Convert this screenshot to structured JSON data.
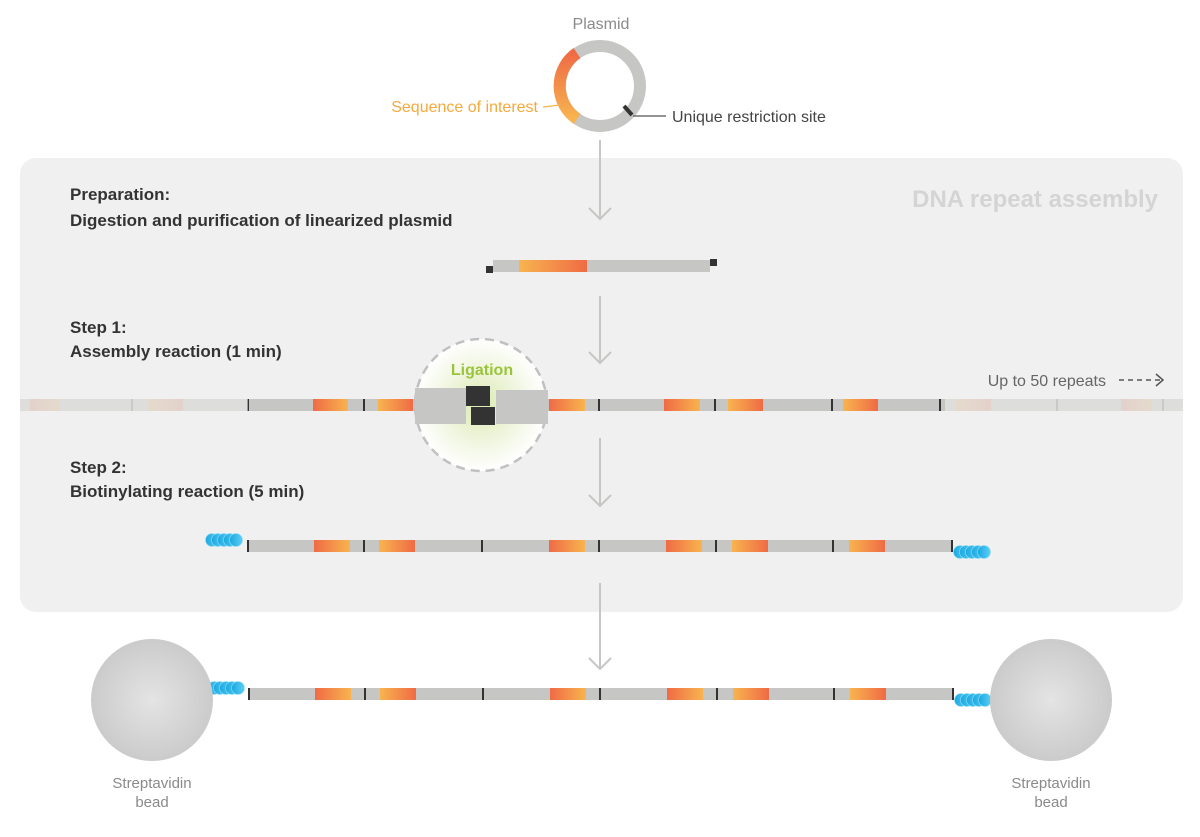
{
  "plasmid": {
    "title": "Plasmid",
    "sequence_label": "Sequence of interest",
    "restriction_label": "Unique restriction site"
  },
  "panel": {
    "title": "DNA repeat assembly",
    "preparation": {
      "heading": "Preparation:",
      "description": "Digestion and purification of linearized plasmid"
    },
    "step1": {
      "heading": "Step 1:",
      "description": "Assembly reaction (1 min)",
      "ligation_label": "Ligation",
      "repeats_label": "Up to 50 repeats"
    },
    "step2": {
      "heading": "Step 2:",
      "description": "Biotinylating reaction (5 min)"
    }
  },
  "beads": {
    "left_label": [
      "Streptavidin",
      "bead"
    ],
    "right_label": [
      "Streptavidin",
      "bead"
    ]
  },
  "colors": {
    "panel_bg": "#f0f0f0",
    "dna_grey": "#c6c6c4",
    "orange": "#ef6b45",
    "yellow": "#f8b44f",
    "ligation_green": "#9ac53a",
    "biotin_blue": "#2fb6e8",
    "dark": "#333333"
  }
}
